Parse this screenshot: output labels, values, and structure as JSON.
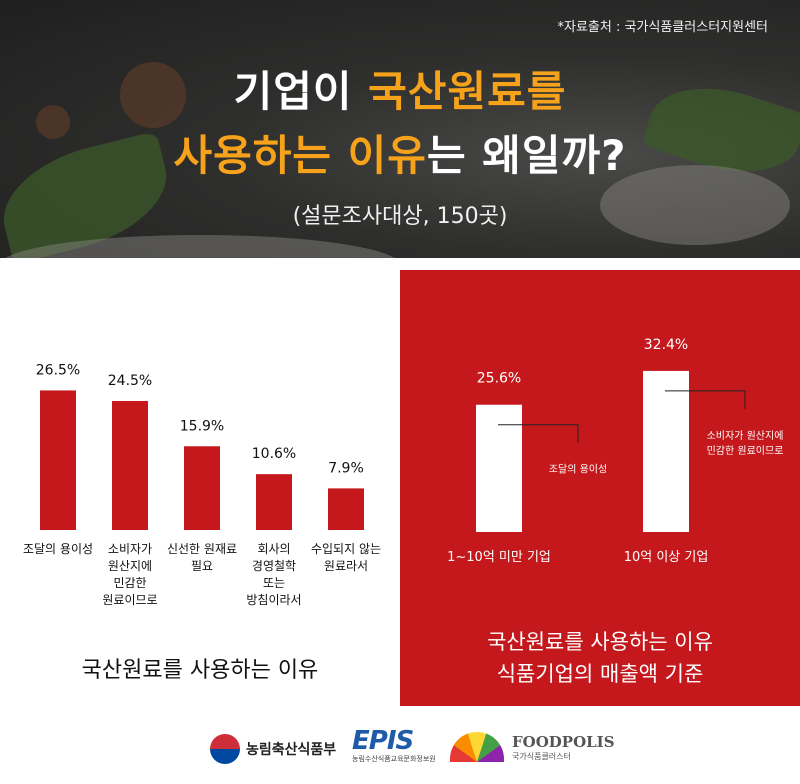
{
  "header": {
    "source": "*자료출처 : 국가식품클러스터지원센터",
    "title_line1_plain": "기업이 ",
    "title_line1_highlight": "국산원료를",
    "title_line2_highlight": "사용하는 이유",
    "title_line2_plain": "는 왜일까?",
    "subtitle": "(설문조사대상, 150곳)",
    "colors": {
      "background": "#2b2b2b",
      "highlight": "#f7a21b"
    }
  },
  "chart_data": [
    {
      "type": "bar",
      "title": "국산원료를 사용하는 이유",
      "categories": [
        "조달의 용이성",
        "소비자가 원산지에 민감한 원료이므로",
        "신선한 원재료 필요",
        "회사의 경영철학 또는 방침이라서",
        "수입되지 않는 원료라서"
      ],
      "category_lines": [
        [
          "조달의 용이성"
        ],
        [
          "소비자가",
          "원산지에",
          "민감한",
          "원료이므로"
        ],
        [
          "신선한 원재료",
          "필요"
        ],
        [
          "회사의",
          "경영철학",
          "또는",
          "방침이라서"
        ],
        [
          "수입되지 않는",
          "원료라서"
        ]
      ],
      "values": [
        26.5,
        24.5,
        15.9,
        10.6,
        7.9
      ],
      "value_labels": [
        "26.5%",
        "24.5%",
        "15.9%",
        "10.6%",
        "7.9%"
      ],
      "ylim": [
        0,
        30
      ],
      "grid": false,
      "bar_color": "#c4181c"
    },
    {
      "type": "bar",
      "title": "국산원료를 사용하는 이유 식품기업의 매출액 기준",
      "title_lines": [
        "국산원료를 사용하는 이유",
        "식품기업의 매출액 기준"
      ],
      "categories": [
        "1~10억 미만 기업",
        "10억 이상 기업"
      ],
      "values": [
        25.6,
        32.4
      ],
      "value_labels": [
        "25.6%",
        "32.4%"
      ],
      "annotations": [
        [
          "조달의 용이성"
        ],
        [
          "소비자가 원산지에",
          "민감한 원료이므로"
        ]
      ],
      "ylim": [
        0,
        35
      ],
      "grid": false,
      "bar_color": "#ffffff",
      "panel_color": "#c4181c"
    }
  ],
  "footer": {
    "logo1": "농림축산식품부",
    "logo2": "EPIS",
    "logo2_sub": "농림수산식품교육문화정보원",
    "logo3": "FOODPOLIS",
    "logo3_sub": "국가식품클러스터"
  }
}
